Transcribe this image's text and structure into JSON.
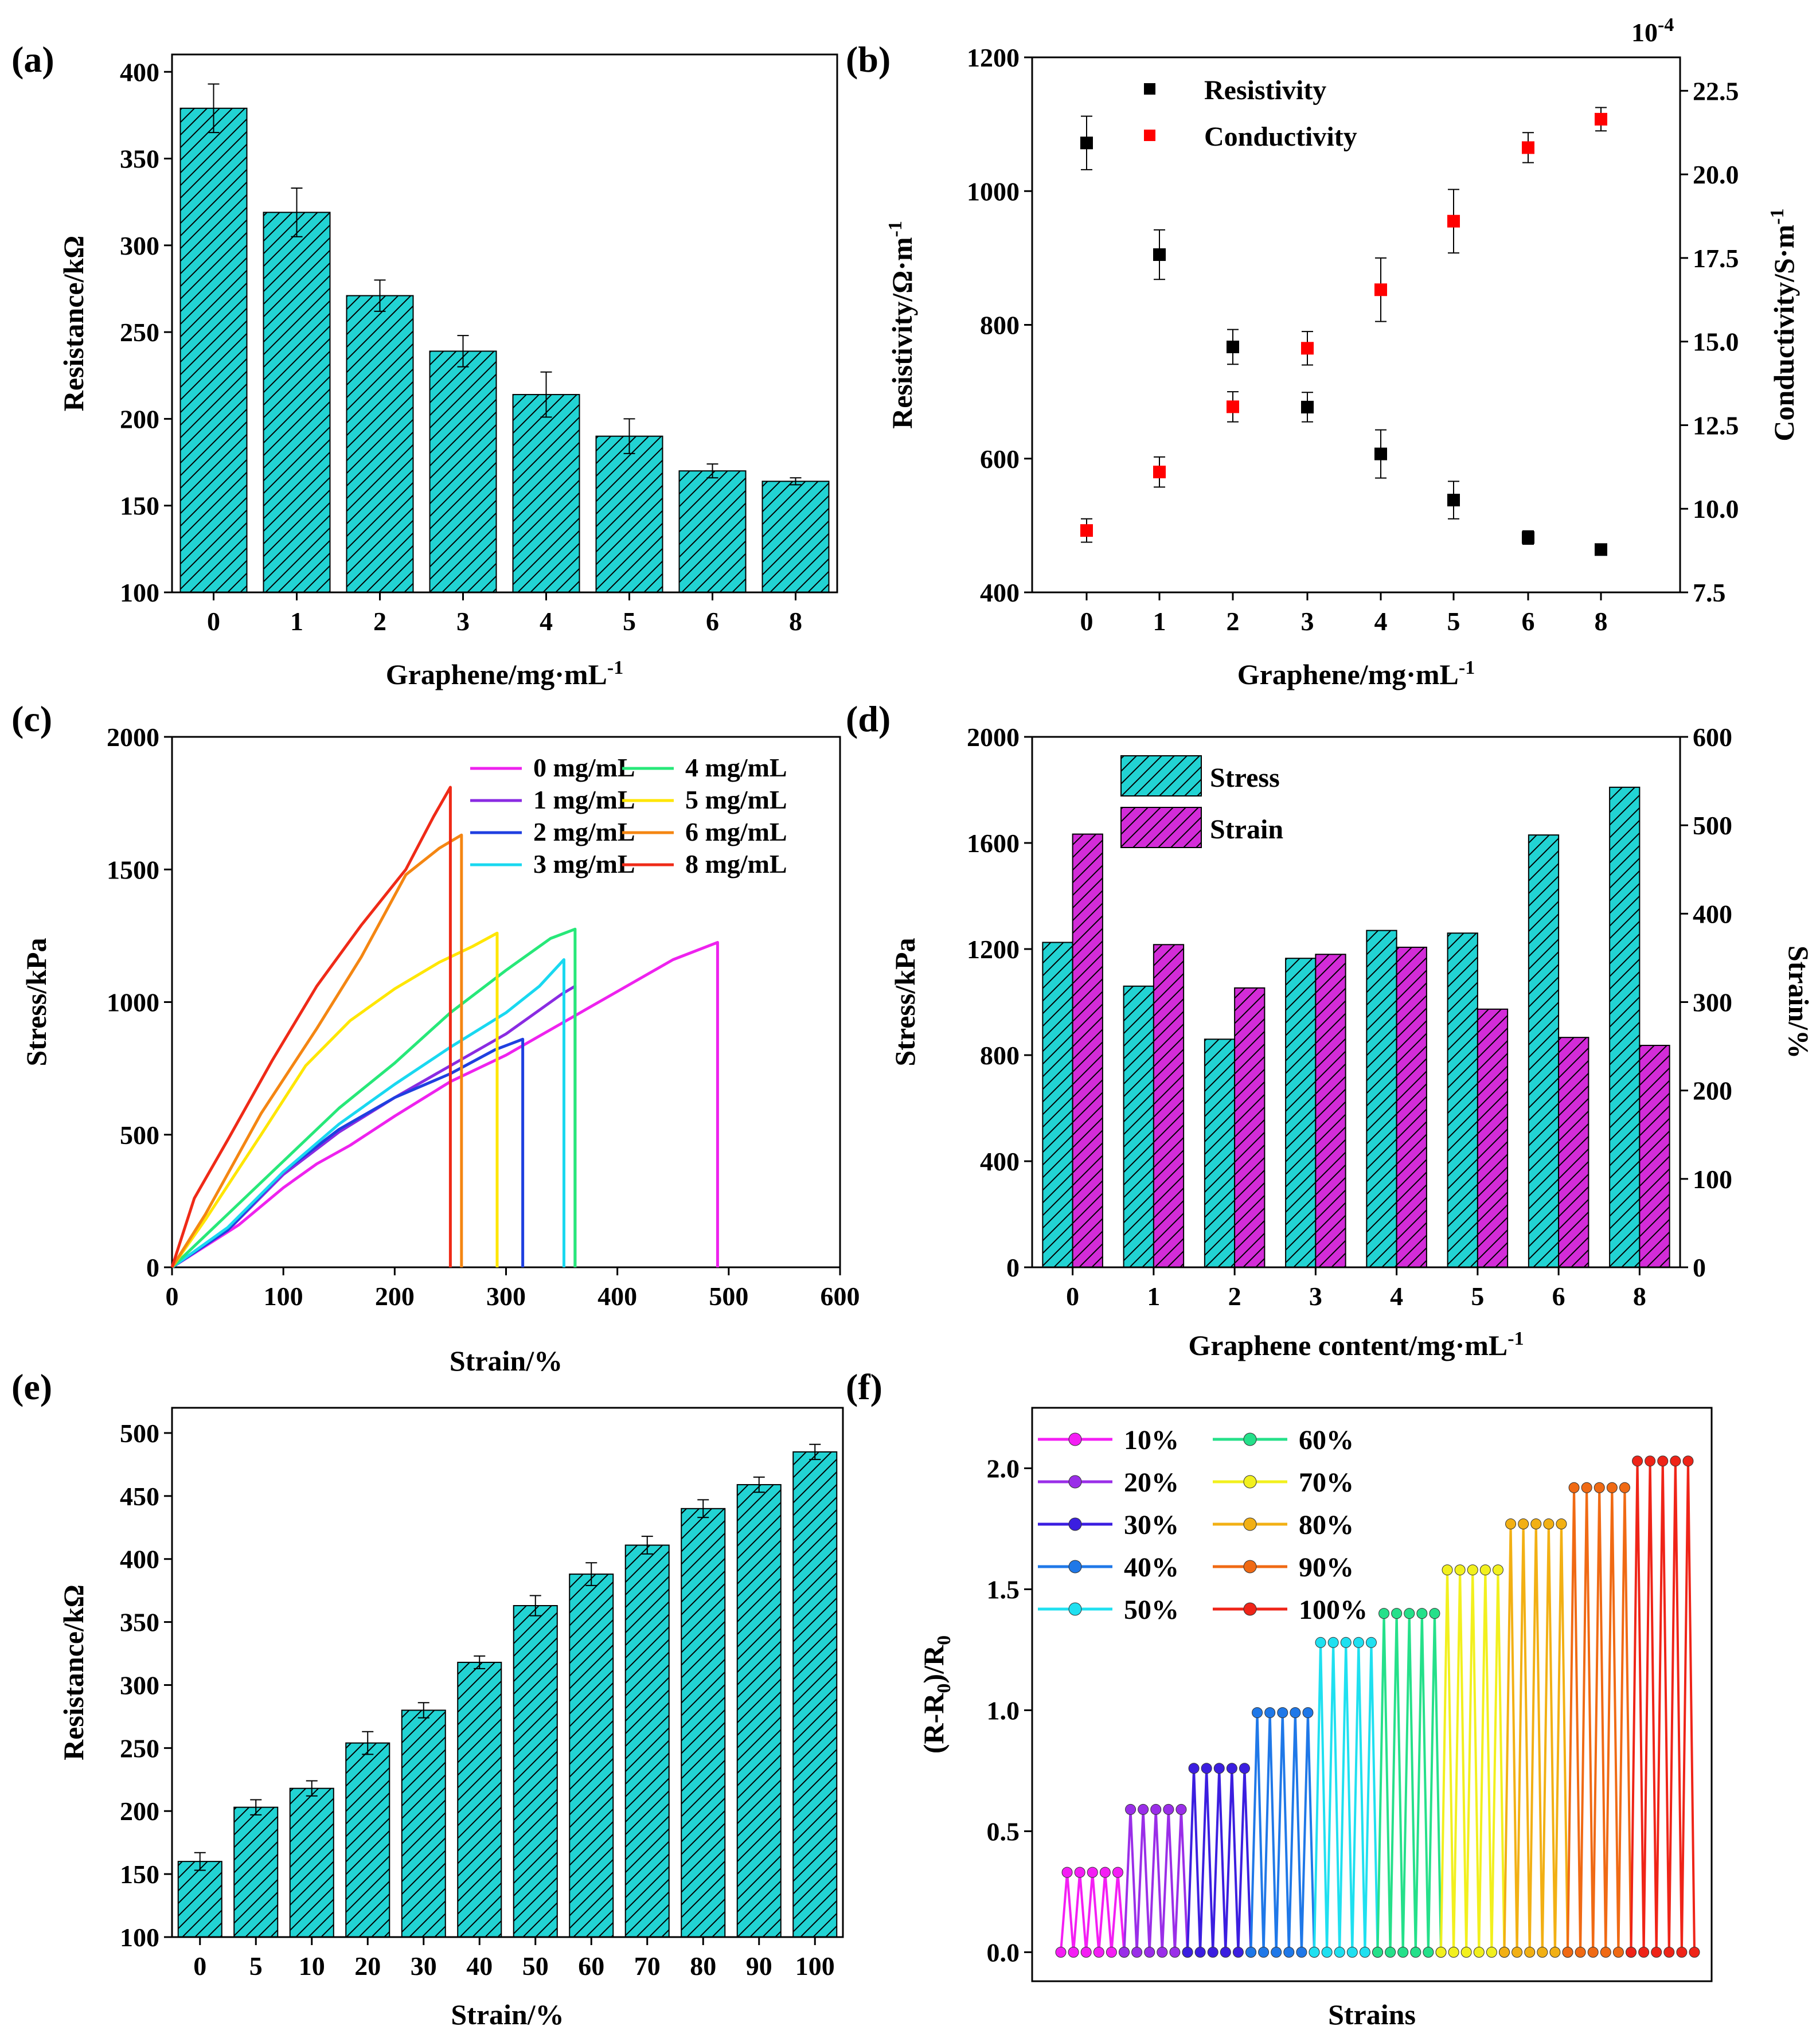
{
  "colors": {
    "bar_teal": "#22d3d3",
    "bar_magenta": "#d32cd8",
    "point_black": "#000000",
    "point_red": "#ff0000",
    "series_a": {
      "0 mg/mL": "#ee22ee",
      "1 mg/mL": "#8a2be2",
      "2 mg/mL": "#1f3fe0",
      "3 mg/mL": "#19d8f0",
      "4 mg/mL": "#27e879",
      "5 mg/mL": "#ffe600",
      "6 mg/mL": "#f48612",
      "8 mg/mL": "#ef2a17"
    },
    "series_f": {
      "10%": "#f41ef4",
      "20%": "#9a2ee8",
      "30%": "#3b1ee0",
      "40%": "#1f78e8",
      "50%": "#1fe0f0",
      "60%": "#25e08a",
      "70%": "#f2f01e",
      "80%": "#f2b014",
      "90%": "#f06a14",
      "100%": "#ef2418"
    }
  },
  "chart_data": [
    {
      "panel": "(a)",
      "type": "bar",
      "categories": [
        "0",
        "1",
        "2",
        "3",
        "4",
        "5",
        "6",
        "8"
      ],
      "values": [
        379,
        319,
        271,
        239,
        214,
        190,
        170,
        164
      ],
      "errors": [
        14,
        14,
        9,
        9,
        13,
        10,
        4,
        2
      ],
      "xlabel": "Graphene/mg·mL",
      "xlabel_sup": "-1",
      "ylabel": "Resistance/kΩ",
      "ylim": [
        100,
        410
      ],
      "yticks": [
        100,
        150,
        200,
        250,
        300,
        350,
        400
      ]
    },
    {
      "panel": "(b)",
      "type": "scatter",
      "categories": [
        "0",
        "1",
        "2",
        "3",
        "4",
        "5",
        "6",
        "8"
      ],
      "series": [
        {
          "name": "Resistivity",
          "axis": "left",
          "values": [
            1072,
            905,
            767,
            677,
            607,
            538,
            482,
            464
          ],
          "errors": [
            40,
            37,
            26,
            22,
            36,
            28,
            10,
            6
          ]
        },
        {
          "name": "Conductivity",
          "axis": "right",
          "values": [
            9.35,
            11.1,
            13.05,
            14.8,
            16.55,
            18.6,
            20.8,
            21.65
          ],
          "errors": [
            0.35,
            0.45,
            0.45,
            0.5,
            0.95,
            0.95,
            0.45,
            0.35
          ]
        }
      ],
      "xlabel": "Graphene/mg·mL",
      "xlabel_sup": "-1",
      "ylabel_left": "Resistivity/Ω·m",
      "ylabel_left_sup": "-1",
      "ylabel_right": "Conductivity/S·m",
      "ylabel_right_sup": "-1",
      "right_axis_multiplier": "10",
      "right_axis_multiplier_sup": "-4",
      "ylim_left": [
        400,
        1200
      ],
      "yticks_left": [
        400,
        600,
        800,
        1000,
        1200
      ],
      "ylim_right": [
        7.5,
        23.5
      ],
      "yticks_right": [
        "7.5",
        "10.0",
        "12.5",
        "15.0",
        "17.5",
        "20.0",
        "22.5"
      ]
    },
    {
      "panel": "(c)",
      "type": "line",
      "xlabel": "Strain/%",
      "ylabel": "Stress/kPa",
      "xlim": [
        0,
        600
      ],
      "ylim": [
        0,
        2000
      ],
      "xticks": [
        0,
        100,
        200,
        300,
        400,
        500,
        600
      ],
      "yticks": [
        0,
        500,
        1000,
        1500,
        2000
      ],
      "series": [
        {
          "name": "0 mg/mL",
          "points": [
            [
              0,
              0
            ],
            [
              60,
              160
            ],
            [
              100,
              300
            ],
            [
              130,
              390
            ],
            [
              160,
              460
            ],
            [
              200,
              570
            ],
            [
              250,
              700
            ],
            [
              300,
              800
            ],
            [
              350,
              920
            ],
            [
              400,
              1040
            ],
            [
              450,
              1160
            ],
            [
              490,
              1225
            ],
            [
              490,
              0
            ]
          ]
        },
        {
          "name": "1 mg/mL",
          "points": [
            [
              0,
              0
            ],
            [
              55,
              160
            ],
            [
              100,
              350
            ],
            [
              150,
              510
            ],
            [
              200,
              640
            ],
            [
              250,
              760
            ],
            [
              300,
              880
            ],
            [
              330,
              970
            ],
            [
              350,
              1030
            ],
            [
              362,
              1060
            ],
            [
              362,
              0
            ]
          ]
        },
        {
          "name": "2 mg/mL",
          "points": [
            [
              0,
              0
            ],
            [
              50,
              140
            ],
            [
              100,
              360
            ],
            [
              150,
              520
            ],
            [
              200,
              640
            ],
            [
              250,
              730
            ],
            [
              290,
              820
            ],
            [
              315,
              860
            ],
            [
              315,
              0
            ]
          ]
        },
        {
          "name": "3 mg/mL",
          "points": [
            [
              0,
              0
            ],
            [
              50,
              150
            ],
            [
              100,
              360
            ],
            [
              150,
              540
            ],
            [
              200,
              690
            ],
            [
              250,
              830
            ],
            [
              300,
              960
            ],
            [
              330,
              1060
            ],
            [
              352,
              1160
            ],
            [
              352,
              0
            ]
          ]
        },
        {
          "name": "4 mg/mL",
          "points": [
            [
              0,
              0
            ],
            [
              50,
              200
            ],
            [
              100,
              400
            ],
            [
              150,
              600
            ],
            [
              200,
              770
            ],
            [
              250,
              960
            ],
            [
              300,
              1120
            ],
            [
              340,
              1240
            ],
            [
              362,
              1275
            ],
            [
              362,
              0
            ]
          ]
        },
        {
          "name": "5 mg/mL",
          "points": [
            [
              0,
              0
            ],
            [
              30,
              180
            ],
            [
              80,
              500
            ],
            [
              120,
              760
            ],
            [
              160,
              930
            ],
            [
              200,
              1050
            ],
            [
              240,
              1150
            ],
            [
              270,
              1210
            ],
            [
              292,
              1260
            ],
            [
              292,
              0
            ]
          ]
        },
        {
          "name": "6 mg/mL",
          "points": [
            [
              0,
              0
            ],
            [
              30,
              200
            ],
            [
              80,
              580
            ],
            [
              130,
              900
            ],
            [
              170,
              1170
            ],
            [
              210,
              1480
            ],
            [
              240,
              1580
            ],
            [
              260,
              1630
            ],
            [
              260,
              0
            ]
          ]
        },
        {
          "name": "8 mg/mL",
          "points": [
            [
              0,
              0
            ],
            [
              20,
              260
            ],
            [
              50,
              480
            ],
            [
              90,
              780
            ],
            [
              130,
              1060
            ],
            [
              170,
              1290
            ],
            [
              210,
              1500
            ],
            [
              235,
              1700
            ],
            [
              250,
              1810
            ],
            [
              250,
              0
            ]
          ]
        }
      ],
      "legend": [
        "0 mg/mL",
        "1 mg/mL",
        "2 mg/mL",
        "3 mg/mL",
        "4 mg/mL",
        "5 mg/mL",
        "6 mg/mL",
        "8 mg/mL"
      ]
    },
    {
      "panel": "(d)",
      "type": "bar",
      "categories": [
        "0",
        "1",
        "2",
        "3",
        "4",
        "5",
        "6",
        "8"
      ],
      "series": [
        {
          "name": "Stress",
          "axis": "left",
          "values": [
            1225,
            1060,
            860,
            1165,
            1270,
            1260,
            1630,
            1810
          ]
        },
        {
          "name": "Strain",
          "axis": "right",
          "values": [
            490,
            365,
            316,
            354,
            362,
            292,
            260,
            251
          ]
        }
      ],
      "xlabel": "Graphene content/mg·mL",
      "xlabel_sup": "-1",
      "ylabel_left": "Stress/kPa",
      "ylabel_right": "Strain/%",
      "ylim_left": [
        0,
        2000
      ],
      "yticks_left": [
        0,
        400,
        800,
        1200,
        1600,
        2000
      ],
      "ylim_right": [
        0,
        600
      ],
      "yticks_right": [
        0,
        100,
        200,
        300,
        400,
        500,
        600
      ]
    },
    {
      "panel": "(e)",
      "type": "bar",
      "categories": [
        "0",
        "5",
        "10",
        "20",
        "30",
        "40",
        "50",
        "60",
        "70",
        "80",
        "90",
        "100"
      ],
      "values": [
        160,
        203,
        218,
        254,
        280,
        318,
        363,
        388,
        411,
        440,
        459,
        485
      ],
      "errors": [
        7,
        6,
        6,
        9,
        6,
        5,
        8,
        9,
        7,
        7,
        6,
        6
      ],
      "xlabel": "Strain/%",
      "ylabel": "Resistance/kΩ",
      "ylim": [
        100,
        520
      ],
      "yticks": [
        100,
        150,
        200,
        250,
        300,
        350,
        400,
        450,
        500
      ]
    },
    {
      "panel": "(f)",
      "type": "line",
      "xlabel": "Strains",
      "ylabel": "(R-R",
      "ylabel_sub": "0",
      "ylabel_tail": ")/R",
      "ylabel_tail_sub": "0",
      "ylim": [
        -0.12,
        2.25
      ],
      "yticks": [
        "0.0",
        "0.5",
        "1.0",
        "1.5",
        "2.0"
      ],
      "cycles_per_strain": 5,
      "series": [
        {
          "name": "10%",
          "peak": 0.33
        },
        {
          "name": "20%",
          "peak": 0.59
        },
        {
          "name": "30%",
          "peak": 0.76
        },
        {
          "name": "40%",
          "peak": 0.99
        },
        {
          "name": "50%",
          "peak": 1.28
        },
        {
          "name": "60%",
          "peak": 1.4
        },
        {
          "name": "70%",
          "peak": 1.58
        },
        {
          "name": "80%",
          "peak": 1.77
        },
        {
          "name": "90%",
          "peak": 1.92
        },
        {
          "name": "100%",
          "peak": 2.03
        }
      ]
    }
  ]
}
